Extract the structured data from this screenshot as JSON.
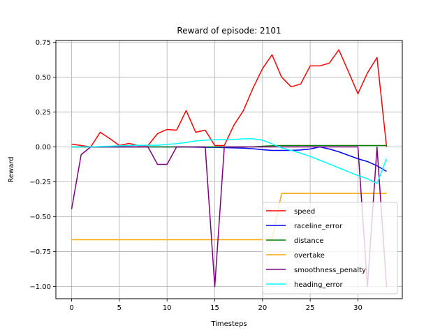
{
  "chart_data": {
    "type": "line",
    "title": "Reward of episode: 2101",
    "xlabel": "Timesteps",
    "ylabel": "Reward",
    "xlim": [
      -1.65,
      34.65
    ],
    "ylim": [
      -1.087,
      0.762
    ],
    "xticks": [
      0,
      5,
      10,
      15,
      20,
      25,
      30
    ],
    "yticks": [
      0.75,
      0.5,
      0.25,
      0.0,
      -0.25,
      -0.5,
      -0.75,
      -1.0
    ],
    "xtick_labels": [
      "0",
      "5",
      "10",
      "15",
      "20",
      "25",
      "30"
    ],
    "ytick_labels": [
      "0.75",
      "0.50",
      "0.25",
      "0.00",
      "−0.25",
      "−0.50",
      "−0.75",
      "−1.00"
    ],
    "grid": true,
    "legend_position": "lower-right",
    "x": [
      0,
      1,
      2,
      3,
      4,
      5,
      6,
      7,
      8,
      9,
      10,
      11,
      12,
      13,
      14,
      15,
      16,
      17,
      18,
      19,
      20,
      21,
      22,
      23,
      24,
      25,
      26,
      27,
      28,
      29,
      30,
      31,
      32,
      33
    ],
    "series": [
      {
        "name": "speed",
        "color": "#ff0000",
        "values": [
          0.02,
          0.01,
          0.0,
          0.105,
          0.06,
          0.01,
          0.025,
          0.01,
          0.01,
          0.095,
          0.125,
          0.12,
          0.26,
          0.105,
          0.12,
          0.01,
          0.01,
          0.155,
          0.26,
          0.42,
          0.56,
          0.66,
          0.5,
          0.43,
          0.45,
          0.58,
          0.58,
          0.6,
          0.695,
          0.54,
          0.38,
          0.53,
          0.64,
          0.0
        ]
      },
      {
        "name": "raceline_error",
        "color": "#0000ff",
        "values": [
          0.0,
          0.0,
          0.0,
          0.0,
          0.0,
          0.0,
          0.0,
          0.0,
          0.0,
          0.0,
          0.0,
          0.0,
          0.0,
          -0.002,
          -0.003,
          -0.003,
          -0.005,
          -0.007,
          -0.009,
          -0.013,
          -0.02,
          -0.025,
          -0.025,
          -0.025,
          -0.022,
          -0.015,
          0.0,
          -0.015,
          -0.035,
          -0.06,
          -0.085,
          -0.105,
          -0.135,
          -0.175
        ]
      },
      {
        "name": "distance",
        "color": "#008000",
        "values": [
          0.0,
          0.0,
          0.0,
          0.0,
          0.0,
          0.0,
          0.0,
          0.0,
          0.0,
          0.0,
          0.0,
          0.0,
          0.0,
          0.0,
          0.0,
          0.0,
          0.0,
          0.0,
          0.0,
          0.0,
          0.005,
          0.008,
          0.01,
          0.01,
          0.01,
          0.01,
          0.01,
          0.01,
          0.01,
          0.01,
          0.01,
          0.01,
          0.01,
          0.01
        ]
      },
      {
        "name": "overtake",
        "color": "#ffa500",
        "values": [
          -0.665,
          -0.665,
          -0.665,
          -0.665,
          -0.665,
          -0.665,
          -0.665,
          -0.665,
          -0.665,
          -0.665,
          -0.665,
          -0.665,
          -0.665,
          -0.665,
          -0.665,
          -0.665,
          -0.665,
          -0.665,
          -0.665,
          -0.665,
          -0.665,
          -0.665,
          -0.333,
          -0.333,
          -0.333,
          -0.333,
          -0.333,
          -0.333,
          -0.333,
          -0.333,
          -0.333,
          -0.333,
          -0.333,
          -0.333
        ]
      },
      {
        "name": "smoothness_penalty",
        "color": "#800080",
        "values": [
          -0.445,
          -0.055,
          0.0,
          0.0,
          0.0,
          0.0,
          0.0,
          0.0,
          0.0,
          -0.125,
          -0.125,
          0.0,
          0.0,
          0.0,
          0.0,
          -1.0,
          0.0,
          0.0,
          0.0,
          0.0,
          0.0,
          0.0,
          0.0,
          0.0,
          0.0,
          0.0,
          0.0,
          0.0,
          0.0,
          0.0,
          0.0,
          -1.0,
          0.0,
          -1.0
        ]
      },
      {
        "name": "heading_error",
        "color": "#00ffff",
        "values": [
          0.0,
          0.0,
          0.0,
          0.003,
          0.005,
          0.008,
          0.01,
          0.012,
          0.012,
          0.012,
          0.018,
          0.023,
          0.032,
          0.043,
          0.048,
          0.052,
          0.052,
          0.053,
          0.058,
          0.058,
          0.048,
          0.022,
          -0.007,
          -0.025,
          -0.045,
          -0.068,
          -0.095,
          -0.122,
          -0.15,
          -0.178,
          -0.205,
          -0.228,
          -0.262,
          -0.085
        ]
      }
    ]
  }
}
